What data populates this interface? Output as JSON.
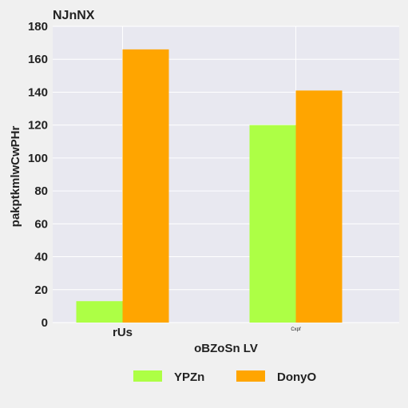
{
  "chart_data": {
    "type": "bar",
    "title": "NJnNX",
    "xlabel": "oBZoSn LV",
    "ylabel": "pakptkmlwCwPHr",
    "categories": [
      "rUs",
      "Cxpf"
    ],
    "category_label_sizes": [
      "normal",
      "small"
    ],
    "ylim": [
      0,
      180
    ],
    "yticks": [
      0,
      20,
      40,
      60,
      80,
      100,
      120,
      140,
      160,
      180
    ],
    "grid": true,
    "legend_position": "bottom",
    "series": [
      {
        "name": "YPZn",
        "values": [
          13,
          120
        ],
        "color": "#adff45"
      },
      {
        "name": "DonyO",
        "values": [
          166,
          141
        ],
        "color": "#ffa500"
      }
    ]
  },
  "colors": {
    "page_background": "#f0f0f0",
    "plot_background": "#e8e8f0",
    "grid": "#ffffff",
    "text": "#222222"
  }
}
